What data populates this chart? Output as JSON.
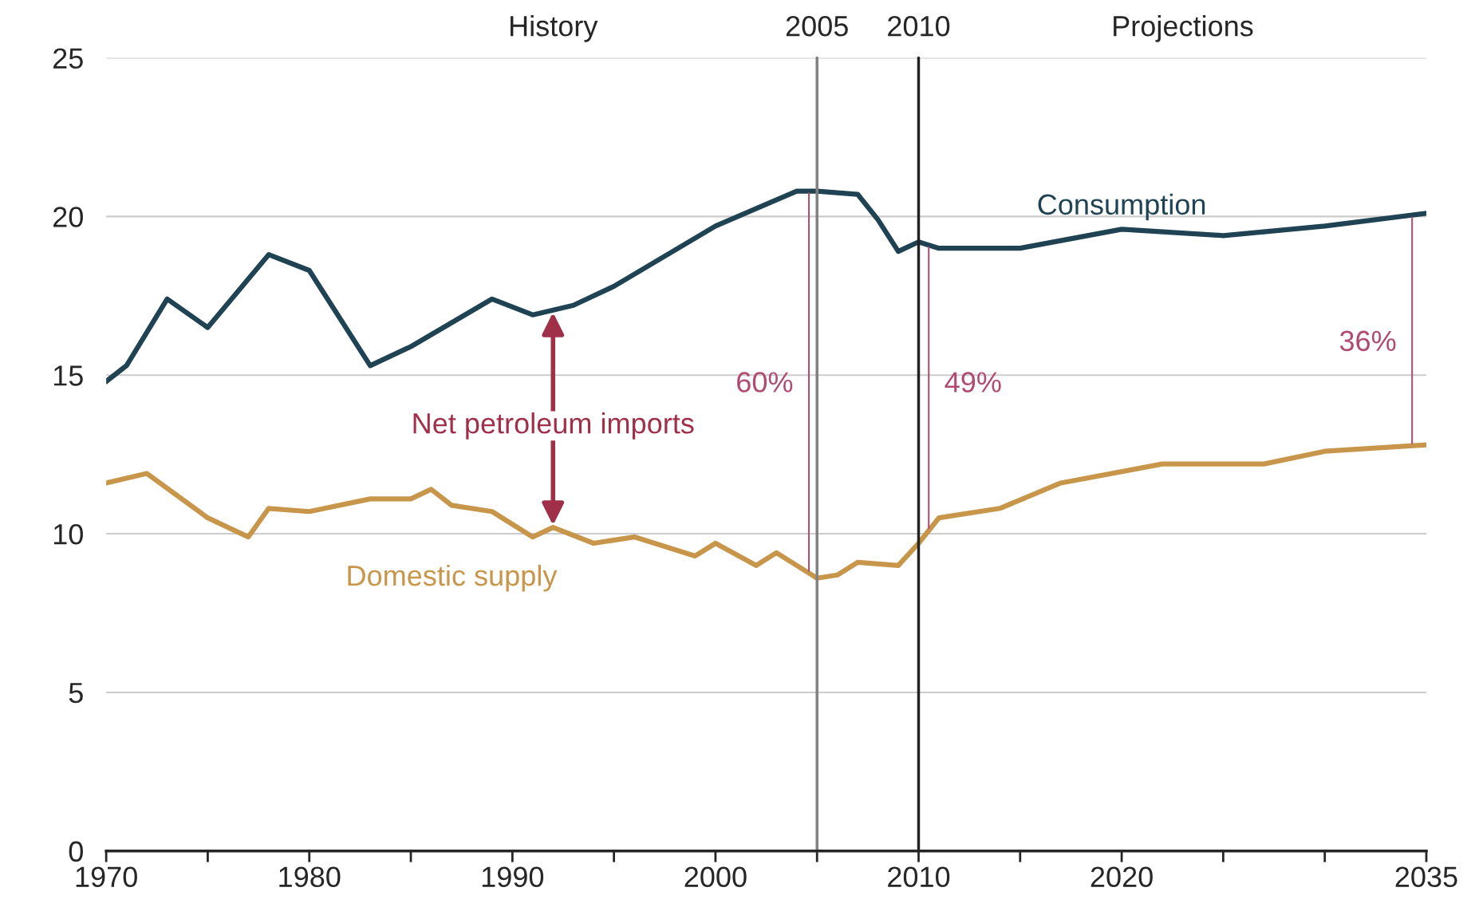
{
  "chart_data": {
    "type": "line",
    "xlim": [
      1970,
      2035
    ],
    "xticks": [
      1970,
      {
        "value": 1975,
        "label": null
      },
      1980,
      {
        "value": 1985,
        "label": null
      },
      1990,
      {
        "value": 1995,
        "label": null
      },
      2000,
      {
        "value": 2005,
        "label": null
      },
      2010,
      {
        "value": 2015,
        "label": null
      },
      2020,
      {
        "value": 2025,
        "label": null
      },
      {
        "value": 2030,
        "label": null
      },
      2035
    ],
    "ylim": [
      0,
      25
    ],
    "yticks": [
      0,
      5,
      10,
      15,
      20,
      25
    ],
    "grid": "y",
    "marker": "none",
    "line_style": "solid",
    "series": [
      {
        "color": "#1f4352",
        "x": [
          1970,
          1971,
          1973,
          1975,
          1978,
          1980,
          1983,
          1985,
          1989,
          1991,
          1993,
          1995,
          2000,
          2004,
          2005,
          2007,
          2008,
          2009,
          2010,
          2011,
          2015,
          2020,
          2025,
          2030,
          2035
        ],
        "values": [
          14.8,
          15.3,
          17.4,
          16.5,
          18.8,
          18.3,
          15.3,
          15.9,
          17.4,
          16.9,
          17.2,
          17.8,
          19.7,
          20.8,
          20.8,
          20.7,
          19.9,
          18.9,
          19.2,
          19.0,
          19.0,
          19.6,
          19.4,
          19.7,
          20.1
        ]
      },
      {
        "color": "#c8964b",
        "x": [
          1970,
          1972,
          1975,
          1977,
          1978,
          1980,
          1983,
          1985,
          1986,
          1987,
          1989,
          1991,
          1992,
          1994,
          1996,
          1999,
          2000,
          2002,
          2003,
          2005,
          2006,
          2007,
          2009,
          2010,
          2011,
          2014,
          2017,
          2022,
          2027,
          2030,
          2035
        ],
        "values": [
          11.6,
          11.9,
          10.5,
          9.9,
          10.8,
          10.7,
          11.1,
          11.1,
          11.4,
          10.9,
          10.7,
          9.9,
          10.2,
          9.7,
          9.9,
          9.3,
          9.7,
          9.0,
          9.4,
          8.6,
          8.7,
          9.1,
          9.0,
          9.7,
          10.5,
          10.8,
          11.6,
          12.2,
          12.2,
          12.6,
          12.8
        ]
      }
    ],
    "ref_lines": [
      {
        "axis": "x",
        "value": 2005,
        "label": "2005",
        "color": "#808080"
      },
      {
        "axis": "x",
        "value": 2010,
        "label": "2010",
        "color": "#222222"
      }
    ],
    "annotations": [
      "History",
      "Projections",
      "Consumption",
      "Domestic supply",
      "Net petroleum imports",
      "60%",
      "49%",
      "36%"
    ]
  }
}
